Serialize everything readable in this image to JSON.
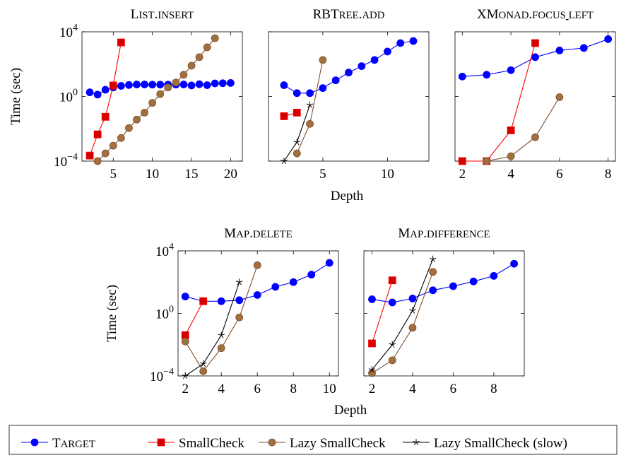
{
  "chart_data": [
    {
      "type": "line",
      "title": "List.insert",
      "xlabel": "",
      "ylabel": "Time (sec)",
      "log_y": true,
      "xlim": [
        1,
        21.5
      ],
      "ylim_exp": [
        -4,
        4
      ],
      "xticks": [
        5,
        10,
        15,
        20
      ],
      "yticks": [
        {
          "base": "10",
          "exp": "−4"
        },
        {
          "base": "10",
          "exp": "0"
        },
        {
          "base": "10",
          "exp": "4"
        }
      ],
      "series": [
        {
          "name": "Target",
          "x": [
            2,
            3,
            4,
            5,
            6,
            7,
            8,
            9,
            10,
            11,
            12,
            13,
            14,
            15,
            16,
            17,
            18,
            19,
            20
          ],
          "y": [
            1.8,
            1.3,
            2.6,
            3.6,
            4.5,
            5.1,
            5.5,
            5.5,
            5.4,
            5.4,
            5.4,
            5.4,
            5.5,
            4.8,
            5.7,
            5.0,
            6.4,
            6.6,
            6.8
          ]
        },
        {
          "name": "SmallCheck",
          "x": [
            2,
            3,
            4,
            5,
            6
          ],
          "y": [
            0.00022,
            0.0045,
            0.055,
            4.8,
            2200
          ]
        },
        {
          "name": "Lazy SmallCheck",
          "x": [
            3,
            4,
            5,
            6,
            7,
            8,
            9,
            10,
            11,
            12,
            13,
            14,
            15,
            16,
            17,
            18
          ],
          "y": [
            0.0001,
            0.0003,
            0.0009,
            0.0027,
            0.011,
            0.037,
            0.1,
            0.4,
            1.4,
            3.6,
            7.3,
            22,
            80,
            270,
            1100,
            4000
          ]
        }
      ]
    },
    {
      "type": "line",
      "title": "RBTree.add",
      "xlabel": "",
      "ylabel": "",
      "log_y": true,
      "xlim": [
        0.8,
        13.2
      ],
      "ylim_exp": [
        -4,
        4
      ],
      "xticks": [
        5,
        10
      ],
      "series": [
        {
          "name": "Target",
          "x": [
            2,
            3,
            4,
            5,
            6,
            7,
            8,
            9,
            10,
            11,
            12
          ],
          "y": [
            5,
            1.6,
            1.6,
            3.3,
            10,
            30,
            75,
            180,
            600,
            2000,
            2700
          ]
        },
        {
          "name": "SmallCheck",
          "x": [
            2,
            3
          ],
          "y": [
            0.06,
            0.1
          ]
        },
        {
          "name": "Lazy SmallCheck",
          "x": [
            3,
            4,
            5
          ],
          "y": [
            0.0003,
            0.02,
            180
          ]
        },
        {
          "name": "Lazy SmallCheck (slow)",
          "x": [
            2,
            3,
            4
          ],
          "y": [
            0.0001,
            0.0015,
            0.3
          ]
        }
      ]
    },
    {
      "type": "line",
      "title": "XMonad.focus_left",
      "xlabel": "",
      "ylabel": "",
      "log_y": true,
      "xlim": [
        1.7,
        8.3
      ],
      "ylim_exp": [
        -4,
        4
      ],
      "xticks": [
        2,
        4,
        6,
        8
      ],
      "series": [
        {
          "name": "Target",
          "x": [
            2,
            3,
            4,
            5,
            6,
            7,
            8
          ],
          "y": [
            17,
            22,
            42,
            270,
            700,
            1000,
            3500
          ]
        },
        {
          "name": "SmallCheck",
          "x": [
            2,
            3,
            4,
            5
          ],
          "y": [
            0.0001,
            0.0001,
            0.008,
            2000
          ]
        },
        {
          "name": "Lazy SmallCheck",
          "x": [
            3,
            4,
            5,
            6
          ],
          "y": [
            0.0001,
            0.0002,
            0.003,
            0.9
          ]
        }
      ]
    },
    {
      "type": "line",
      "title": "Map.delete",
      "xlabel": "",
      "ylabel": "Time (sec)",
      "log_y": true,
      "xlim": [
        1.6,
        10.5
      ],
      "ylim_exp": [
        -4,
        4
      ],
      "xticks": [
        2,
        4,
        6,
        8,
        10
      ],
      "yticks": [
        {
          "base": "10",
          "exp": "−4"
        },
        {
          "base": "10",
          "exp": "0"
        },
        {
          "base": "10",
          "exp": "4"
        }
      ],
      "series": [
        {
          "name": "Target",
          "x": [
            2,
            3,
            4,
            5,
            6,
            7,
            8,
            9,
            10
          ],
          "y": [
            12,
            6,
            6,
            7,
            15,
            50,
            100,
            300,
            1700
          ]
        },
        {
          "name": "SmallCheck",
          "x": [
            2,
            3
          ],
          "y": [
            0.04,
            6
          ]
        },
        {
          "name": "Lazy SmallCheck",
          "x": [
            2,
            3,
            4,
            5,
            6
          ],
          "y": [
            0.016,
            0.0002,
            0.006,
            0.55,
            1200
          ]
        },
        {
          "name": "Lazy SmallCheck (slow)",
          "x": [
            2,
            3,
            4,
            5
          ],
          "y": [
            0.0001,
            0.0006,
            0.04,
            100
          ]
        }
      ]
    },
    {
      "type": "line",
      "title": "Map.difference",
      "xlabel": "",
      "ylabel": "",
      "log_y": true,
      "xlim": [
        1.6,
        9.5
      ],
      "ylim_exp": [
        -4,
        4
      ],
      "xticks": [
        2,
        4,
        6,
        8
      ],
      "series": [
        {
          "name": "Target",
          "x": [
            2,
            3,
            4,
            5,
            6,
            7,
            8,
            9
          ],
          "y": [
            8,
            5,
            9,
            30,
            55,
            110,
            250,
            1500
          ]
        },
        {
          "name": "SmallCheck",
          "x": [
            2,
            3
          ],
          "y": [
            0.012,
            130
          ]
        },
        {
          "name": "Lazy SmallCheck",
          "x": [
            2,
            3,
            4,
            5
          ],
          "y": [
            0.00015,
            0.001,
            0.12,
            450
          ]
        },
        {
          "name": "Lazy SmallCheck (slow)",
          "x": [
            2,
            3,
            4,
            5
          ],
          "y": [
            0.00025,
            0.01,
            1.5,
            3000
          ]
        }
      ]
    }
  ],
  "shared_xlabels": [
    "Depth",
    "Depth"
  ],
  "legend": {
    "placement": "bottom",
    "entries": [
      {
        "name": "Target",
        "small_caps": true,
        "marker": "circle",
        "color": "#0000ff",
        "fill": "#0000ff"
      },
      {
        "name": "SmallCheck",
        "small_caps": false,
        "marker": "square",
        "color": "#ff0000",
        "fill": "#d40000"
      },
      {
        "name": "Lazy SmallCheck",
        "small_caps": false,
        "marker": "circle",
        "color": "#7f4f2f",
        "fill": "#a0703f"
      },
      {
        "name": "Lazy SmallCheck (slow)",
        "small_caps": false,
        "marker": "star",
        "color": "#000000",
        "fill": "#000000"
      }
    ]
  }
}
